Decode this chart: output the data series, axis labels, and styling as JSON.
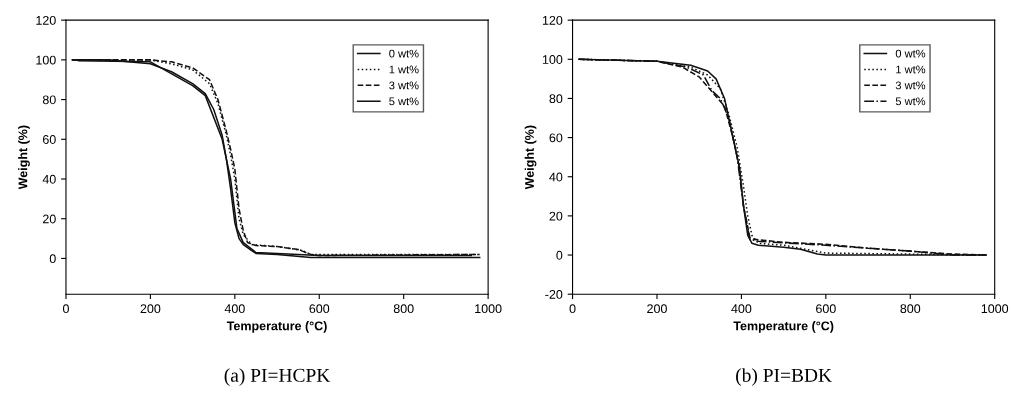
{
  "chart_data": [
    {
      "type": "line",
      "xlabel": "Temperature (°C)",
      "ylabel": "Weight (%)",
      "annotations": [
        "(a) PI=HCPK"
      ],
      "xlim": [
        0,
        1000
      ],
      "xticks": [
        0,
        200,
        400,
        600,
        800,
        1000
      ],
      "ylim": [
        -18,
        120
      ],
      "yticks": [
        0,
        20,
        40,
        60,
        80,
        100,
        120
      ],
      "grid": false,
      "legend": "top right",
      "marker": "none",
      "series": [
        {
          "name": "0 wt%",
          "color": "#111111",
          "line_style": "solid",
          "x": [
            15,
            100,
            200,
            250,
            300,
            330,
            350,
            370,
            380,
            390,
            400,
            410,
            420,
            440,
            450,
            500,
            580,
            600,
            980
          ],
          "values": [
            100,
            100,
            98,
            94,
            88,
            83,
            75,
            62,
            50,
            35,
            18,
            10,
            7,
            4,
            2.5,
            2,
            0.5,
            0.5,
            0.5
          ]
        },
        {
          "name": "1 wt%",
          "color": "#111111",
          "line_style": "dotted",
          "x": [
            15,
            200,
            250,
            300,
            340,
            360,
            380,
            390,
            400,
            410,
            420,
            440,
            500,
            560,
            580,
            600,
            980
          ],
          "values": [
            100,
            100,
            98,
            95,
            88,
            78,
            62,
            52,
            40,
            20,
            12,
            7,
            6,
            4,
            2,
            2,
            2
          ]
        },
        {
          "name": "3 wt%",
          "color": "#111111",
          "line_style": "dashed",
          "x": [
            15,
            200,
            250,
            300,
            340,
            360,
            380,
            390,
            400,
            410,
            420,
            430,
            450,
            500,
            550,
            580,
            600,
            980
          ],
          "values": [
            100,
            100,
            99,
            96,
            90,
            80,
            64,
            55,
            45,
            25,
            14,
            8,
            6.5,
            6,
            4.5,
            2,
            1.5,
            2
          ]
        },
        {
          "name": "5 wt%",
          "color": "#111111",
          "line_style": "solid",
          "x": [
            30,
            200,
            300,
            330,
            370,
            390,
            405,
            420,
            450,
            600,
            960
          ],
          "values": [
            99.5,
            99,
            87,
            82,
            60,
            40,
            15,
            8,
            3,
            1.5,
            1.5
          ]
        }
      ]
    },
    {
      "type": "line",
      "xlabel": "Temperature (°C)",
      "ylabel": "Weight (%)",
      "annotations": [
        "(b) PI=BDK"
      ],
      "xlim": [
        0,
        1000
      ],
      "xticks": [
        0,
        200,
        400,
        600,
        800,
        1000
      ],
      "ylim": [
        -20,
        120
      ],
      "yticks": [
        -20,
        0,
        20,
        40,
        60,
        80,
        100,
        120
      ],
      "grid": false,
      "legend": "top right",
      "marker": "none",
      "series": [
        {
          "name": "0 wt%",
          "color": "#111111",
          "line_style": "solid",
          "x": [
            15,
            200,
            280,
            320,
            340,
            360,
            375,
            385,
            395,
            405,
            415,
            425,
            440,
            500,
            540,
            580,
            600,
            980
          ],
          "values": [
            100,
            99,
            97,
            94,
            90,
            80,
            65,
            55,
            45,
            25,
            10,
            6,
            5,
            4,
            3,
            0.5,
            0,
            0
          ]
        },
        {
          "name": "1 wt%",
          "color": "#111111",
          "line_style": "dotted",
          "x": [
            15,
            200,
            280,
            320,
            350,
            370,
            390,
            405,
            415,
            425,
            440,
            500,
            550,
            600,
            980
          ],
          "values": [
            100,
            99,
            96,
            92,
            85,
            72,
            55,
            35,
            20,
            10,
            6,
            5,
            3,
            1,
            0
          ]
        },
        {
          "name": "3 wt%",
          "color": "#111111",
          "line_style": "dashed",
          "x": [
            15,
            200,
            260,
            300,
            320,
            340,
            360,
            380,
            395,
            405,
            420,
            430,
            500,
            600,
            700,
            800,
            900,
            980
          ],
          "values": [
            100,
            99,
            96,
            91,
            86,
            81,
            76,
            60,
            45,
            25,
            9,
            8,
            6.5,
            5.5,
            3.5,
            2,
            0.5,
            0
          ]
        },
        {
          "name": "5 wt%",
          "color": "#111111",
          "line_style": "dashdot",
          "x": [
            15,
            200,
            270,
            310,
            330,
            350,
            370,
            390,
            405,
            420,
            440,
            600,
            800,
            900,
            980
          ],
          "values": [
            100,
            99,
            96,
            92,
            84,
            80,
            70,
            50,
            25,
            8,
            7,
            5,
            2,
            0,
            0
          ]
        }
      ]
    }
  ]
}
